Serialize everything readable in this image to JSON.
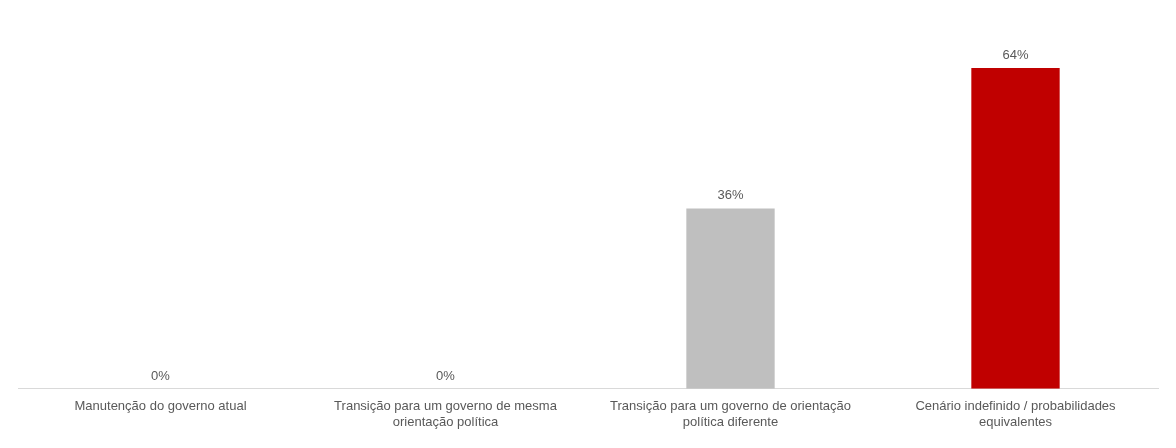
{
  "chart_data": {
    "type": "bar",
    "categories": [
      "Manutenção do governo atual",
      "Transição para um governo de mesma orientação política",
      "Transição para um governo de orientação política diferente",
      "Cenário indefinido / probabilidades equivalentes"
    ],
    "values": [
      0,
      0,
      36,
      64
    ],
    "colors": [
      "#bfbfbf",
      "#bfbfbf",
      "#bfbfbf",
      "#c00000"
    ],
    "value_labels": [
      "0%",
      "0%",
      "36%",
      "64%"
    ],
    "grid": false,
    "legend": false
  }
}
